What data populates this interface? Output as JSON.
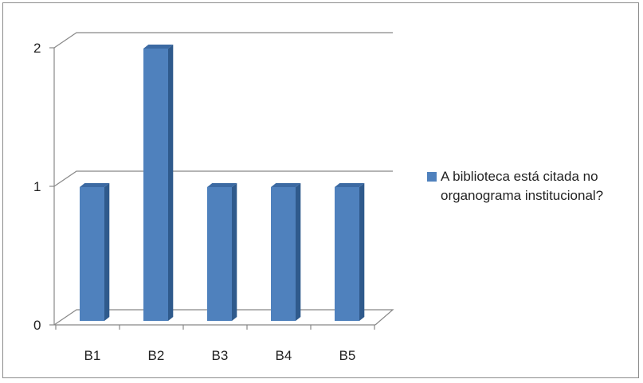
{
  "chart_data": {
    "type": "bar",
    "categories": [
      "B1",
      "B2",
      "B3",
      "B4",
      "B5"
    ],
    "series": [
      {
        "name": "A biblioteca está citada no organograma institucional?",
        "values": [
          1,
          2,
          1,
          1,
          1
        ]
      }
    ],
    "ylim": [
      0,
      2
    ],
    "yticks": [
      "0",
      "1",
      "2"
    ],
    "grid": true,
    "legend_position": "right",
    "colors": {
      "bar_front": "#4f81bd",
      "bar_side": "#2f5a8c",
      "bar_top": "#3c6aa3",
      "gridline": "#888888"
    }
  }
}
